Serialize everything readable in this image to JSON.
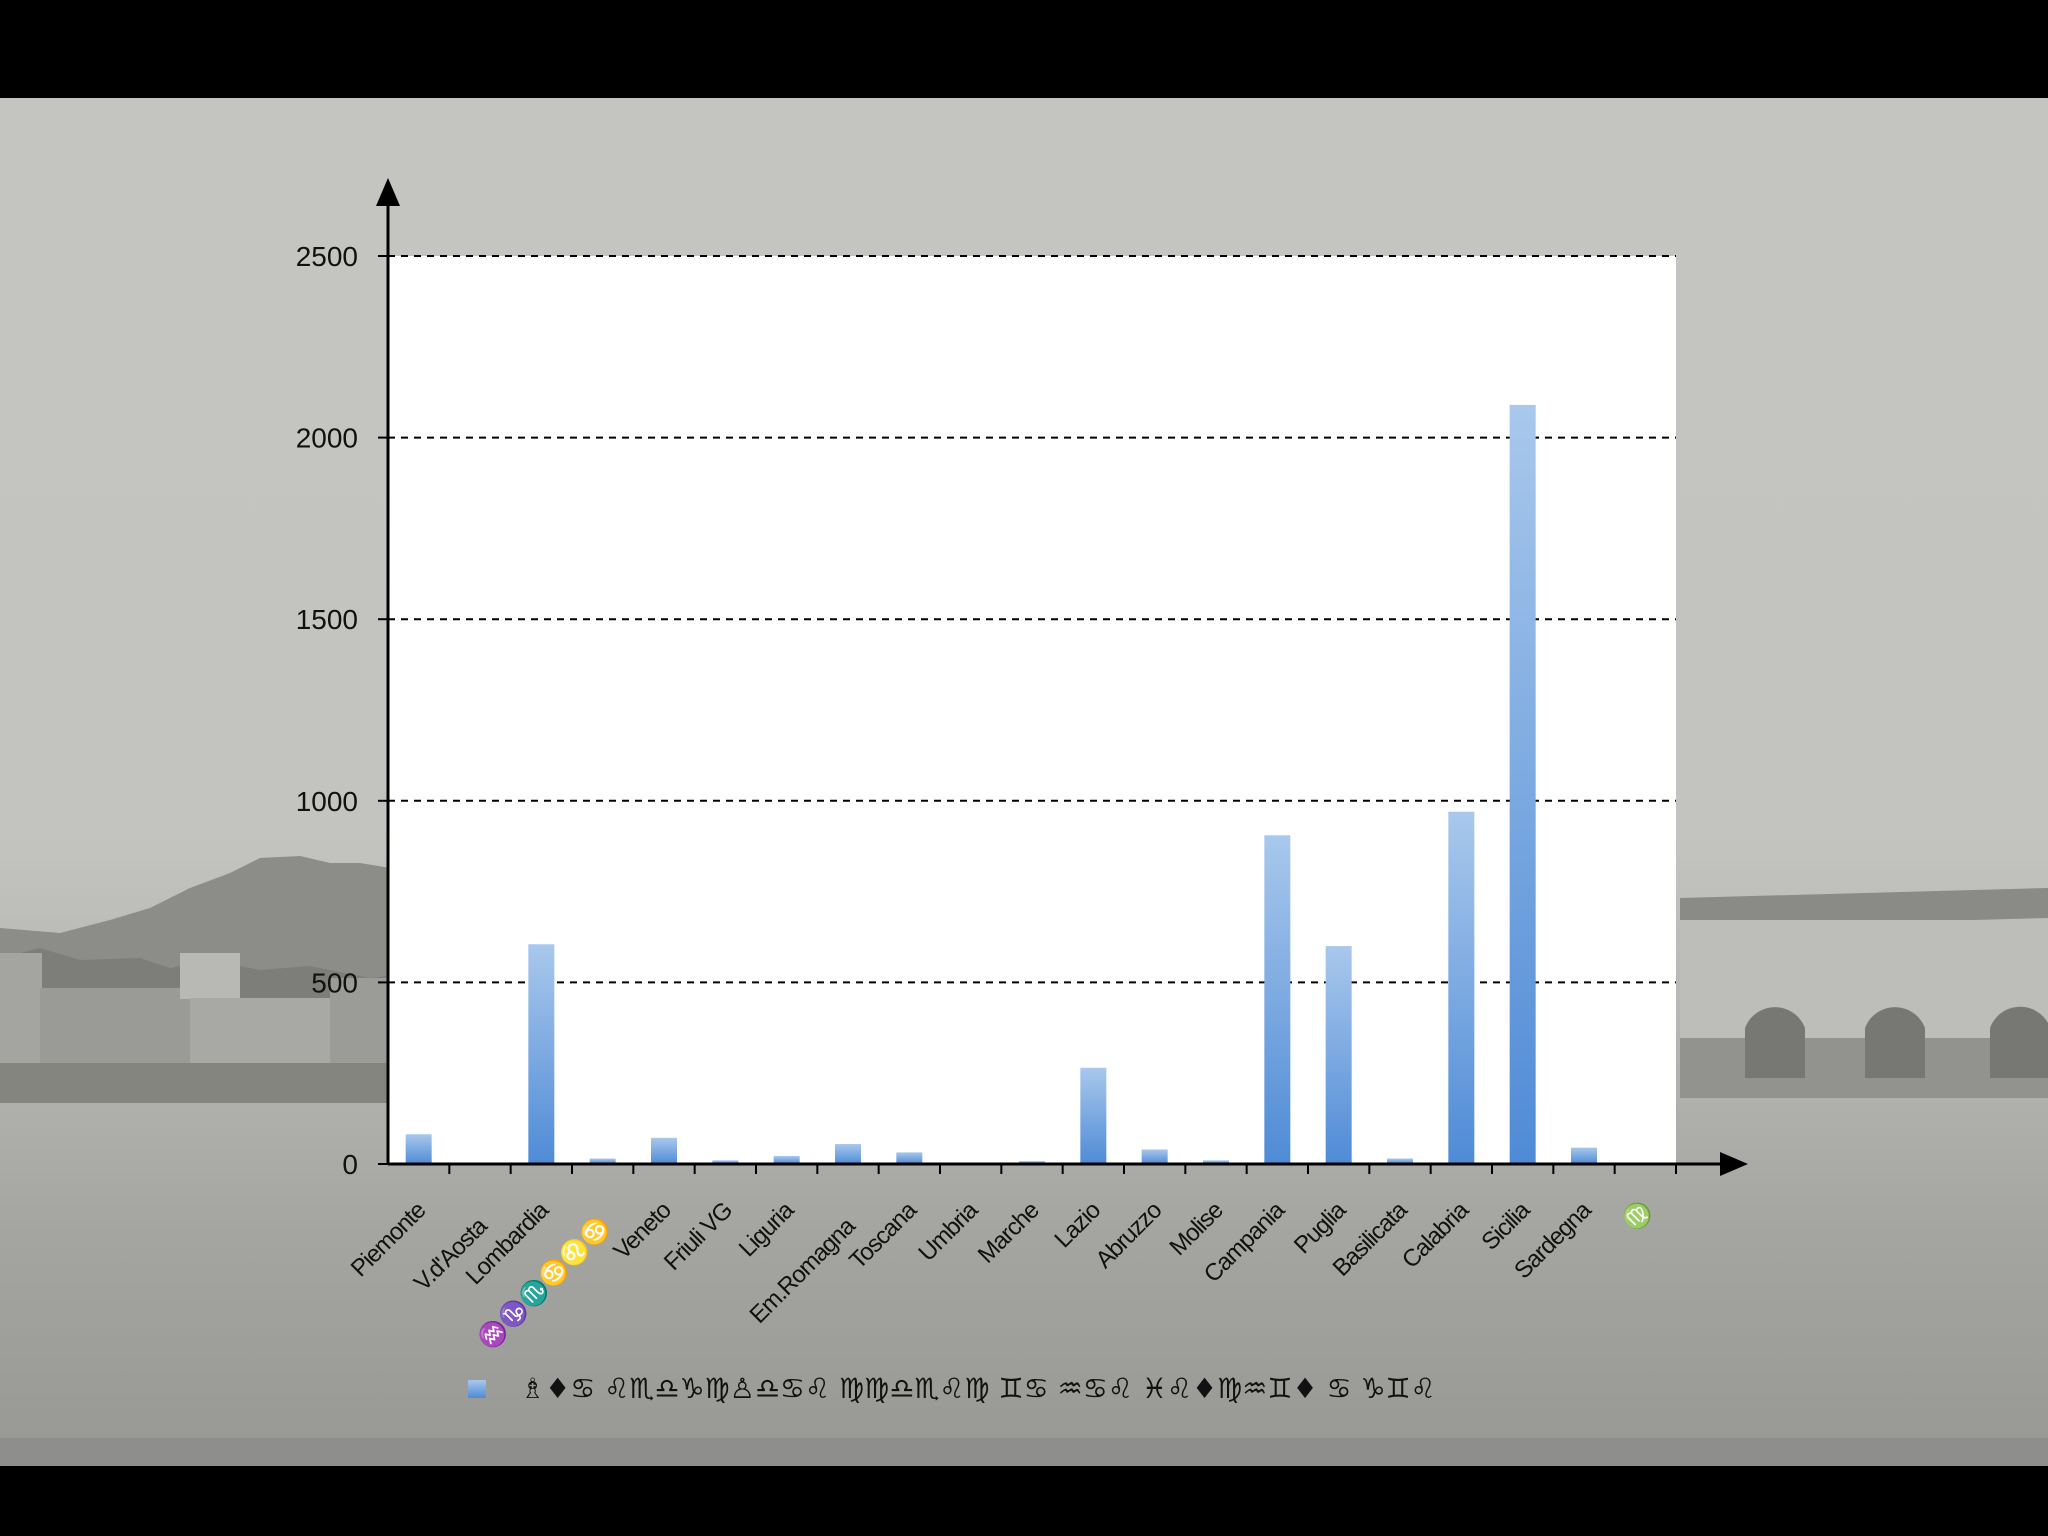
{
  "chart_data": {
    "type": "bar",
    "categories": [
      "Piemonte",
      "V.d'Aosta",
      "Lombardia",
      "♒♑♏♋♌♋",
      "Veneto",
      "Friuli VG",
      "Liguria",
      "Em.Romagna",
      "Toscana",
      "Umbria",
      "Marche",
      "Lazio",
      "Abruzzo",
      "Molise",
      "Campania",
      "Puglia",
      "Basilicata",
      "Calabria",
      "Sicilia",
      "Sardegna",
      "♍"
    ],
    "series": [
      {
        "name": "♗♦♋ ♌♏♎♑♍♙♎♋♌ ♍♍♎♏♌♍ ♊♋ ♒♋♌ ♓♌♦♍♒♊♦ ♋ ♑♊♌",
        "values": [
          82,
          0,
          605,
          15,
          72,
          10,
          22,
          55,
          32,
          0,
          8,
          265,
          40,
          10,
          905,
          600,
          15,
          970,
          2090,
          45,
          0
        ]
      }
    ],
    "ylim": [
      0,
      2500
    ],
    "yticks": [
      0,
      500,
      1000,
      1500,
      2000,
      2500
    ],
    "gridlines": "dashed",
    "legend_position": "bottom",
    "colors": {
      "bar_top": "#a9c8ec",
      "bar_bottom": "#4f8bd6",
      "plot_background": "#ffffff"
    }
  }
}
